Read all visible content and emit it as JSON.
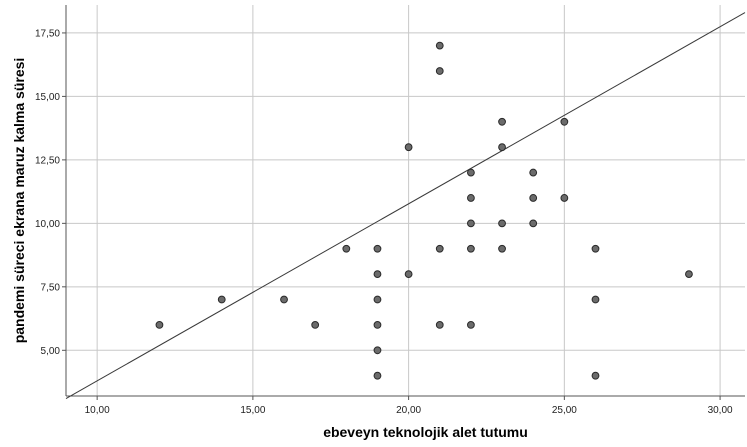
{
  "chart_data": {
    "type": "scatter",
    "title": "",
    "xlabel": "ebeveyn teknolojik alet tutumu",
    "ylabel": "pandemi süreci ekrana maruz kalma süresi",
    "xlim": [
      9,
      30.8
    ],
    "ylim": [
      3.2,
      18.6
    ],
    "x_ticks": [
      10,
      15,
      20,
      25,
      30
    ],
    "x_tick_labels": [
      "10,00",
      "15,00",
      "20,00",
      "25,00",
      "30,00"
    ],
    "y_ticks": [
      5,
      7.5,
      10,
      12.5,
      15,
      17.5
    ],
    "y_tick_labels": [
      "5,00",
      "7,50",
      "10,00",
      "12,50",
      "15,00",
      "17,50"
    ],
    "grid": true,
    "legend": "none",
    "colors": {
      "point_fill": "#6b6b6b",
      "point_stroke": "#2a2a2a",
      "grid": "#c8c8c8",
      "fit_line": "#3a3a3a",
      "axis": "#555555"
    },
    "fit_line": {
      "x": [
        9,
        30.8
      ],
      "y": [
        3.1,
        18.3
      ]
    },
    "points": [
      {
        "x": 12,
        "y": 6
      },
      {
        "x": 14,
        "y": 7
      },
      {
        "x": 16,
        "y": 7
      },
      {
        "x": 17,
        "y": 6
      },
      {
        "x": 18,
        "y": 9
      },
      {
        "x": 19,
        "y": 9
      },
      {
        "x": 19,
        "y": 8
      },
      {
        "x": 19,
        "y": 7
      },
      {
        "x": 19,
        "y": 6
      },
      {
        "x": 19,
        "y": 5
      },
      {
        "x": 19,
        "y": 4
      },
      {
        "x": 20,
        "y": 13
      },
      {
        "x": 20,
        "y": 8
      },
      {
        "x": 21,
        "y": 17
      },
      {
        "x": 21,
        "y": 16
      },
      {
        "x": 21,
        "y": 9
      },
      {
        "x": 21,
        "y": 6
      },
      {
        "x": 22,
        "y": 12
      },
      {
        "x": 22,
        "y": 11
      },
      {
        "x": 22,
        "y": 10
      },
      {
        "x": 22,
        "y": 9
      },
      {
        "x": 22,
        "y": 6
      },
      {
        "x": 23,
        "y": 14
      },
      {
        "x": 23,
        "y": 13
      },
      {
        "x": 23,
        "y": 10
      },
      {
        "x": 23,
        "y": 9
      },
      {
        "x": 24,
        "y": 12
      },
      {
        "x": 24,
        "y": 11
      },
      {
        "x": 24,
        "y": 10
      },
      {
        "x": 25,
        "y": 14
      },
      {
        "x": 25,
        "y": 11
      },
      {
        "x": 26,
        "y": 9
      },
      {
        "x": 26,
        "y": 7
      },
      {
        "x": 26,
        "y": 4
      },
      {
        "x": 29,
        "y": 8
      }
    ]
  }
}
